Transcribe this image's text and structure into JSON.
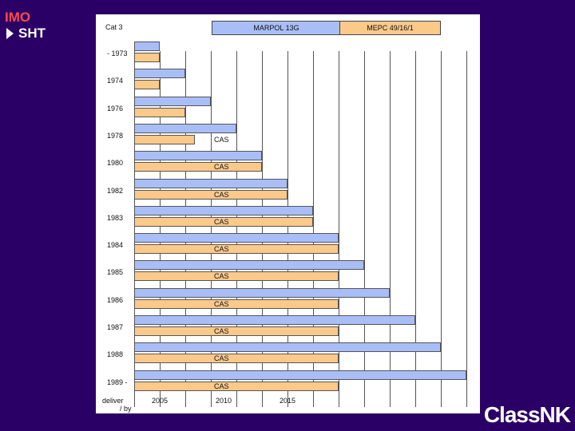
{
  "corner": {
    "org": "IMO",
    "link": "SHT"
  },
  "header": {
    "category": "Cat 3",
    "marpol": "MARPOL 13G",
    "mepc": "MEPC 49/16/1"
  },
  "cas_label": "CAS",
  "rows": [
    {
      "label": "- 1973",
      "blue_end": 2005,
      "orange_end": 2005,
      "cas": false
    },
    {
      "label": "1974",
      "blue_end": 2007,
      "orange_end": 2005,
      "cas": false
    },
    {
      "label": "1976",
      "blue_end": 2009,
      "orange_end": 2007,
      "cas": false
    },
    {
      "label": "1978",
      "blue_end": 2011,
      "orange_end": 2007.75,
      "cas": true
    },
    {
      "label": "1980",
      "blue_end": 2013,
      "orange_end": 2013,
      "cas": true
    },
    {
      "label": "1982",
      "blue_end": 2015,
      "orange_end": 2015,
      "cas": true
    },
    {
      "label": "1983",
      "blue_end": 2017,
      "orange_end": 2017,
      "cas": true
    },
    {
      "label": "1984",
      "blue_end": 2019,
      "orange_end": 2019,
      "cas": true
    },
    {
      "label": "1985",
      "blue_end": 2021,
      "orange_end": 2019,
      "cas": true
    },
    {
      "label": "1986",
      "blue_end": 2023,
      "orange_end": 2019,
      "cas": true
    },
    {
      "label": "1987",
      "blue_end": 2025,
      "orange_end": 2019,
      "cas": true
    },
    {
      "label": "1988",
      "blue_end": 2027,
      "orange_end": 2019,
      "cas": true
    },
    {
      "label": "1989 -",
      "blue_end": 2029,
      "orange_end": 2019,
      "cas": true
    }
  ],
  "axis": {
    "start": 2003,
    "end": 2029,
    "ticks": [
      "2005",
      "2010",
      "2015"
    ]
  },
  "axis_caption": {
    "line1": "deliver",
    "line2": "/ by"
  },
  "logo": "ClassNK",
  "colors": {
    "background": "#2b0066",
    "blue": "#a9bef7",
    "orange": "#fbc98a",
    "imo": "#ff4a4a"
  }
}
